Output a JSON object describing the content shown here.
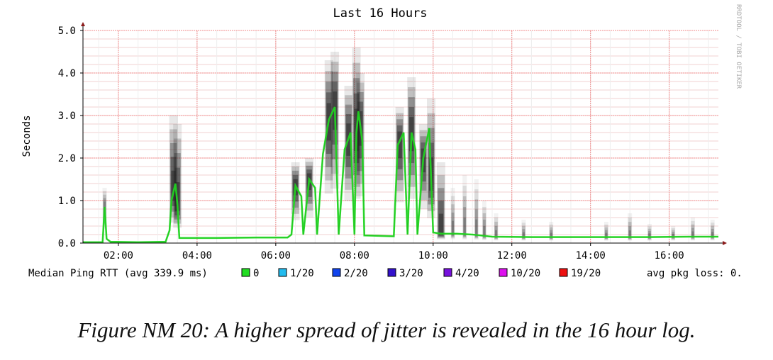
{
  "chart_data": {
    "type": "area",
    "title": "Last 16 Hours",
    "ylabel": "Seconds",
    "xlabel": "",
    "watermark": "RRDTOOL / TOBI OETIKER",
    "ylim": [
      0,
      5.0
    ],
    "y_ticks": [
      "0.0",
      "1.0",
      "2.0",
      "3.0",
      "4.0",
      "5.0"
    ],
    "x_ticks": [
      "02:00",
      "04:00",
      "06:00",
      "08:00",
      "10:00",
      "12:00",
      "14:00",
      "16:00"
    ],
    "x_range_hours": [
      1.1,
      17.25
    ],
    "grid": true,
    "median_series": {
      "name": "Median Ping RTT",
      "color": "#22dd22",
      "points": [
        [
          1.1,
          0.02
        ],
        [
          1.6,
          0.02
        ],
        [
          1.65,
          0.85
        ],
        [
          1.7,
          0.1
        ],
        [
          1.8,
          0.03
        ],
        [
          2.5,
          0.02
        ],
        [
          3.2,
          0.03
        ],
        [
          3.3,
          0.3
        ],
        [
          3.35,
          1.0
        ],
        [
          3.45,
          1.4
        ],
        [
          3.5,
          0.9
        ],
        [
          3.55,
          0.12
        ],
        [
          4.5,
          0.12
        ],
        [
          5.5,
          0.13
        ],
        [
          6.3,
          0.13
        ],
        [
          6.4,
          0.2
        ],
        [
          6.5,
          1.35
        ],
        [
          6.65,
          1.1
        ],
        [
          6.7,
          0.2
        ],
        [
          6.85,
          1.5
        ],
        [
          7.0,
          1.3
        ],
        [
          7.05,
          0.2
        ],
        [
          7.2,
          2.1
        ],
        [
          7.35,
          2.9
        ],
        [
          7.5,
          3.2
        ],
        [
          7.6,
          0.2
        ],
        [
          7.75,
          2.2
        ],
        [
          7.9,
          2.6
        ],
        [
          8.0,
          0.2
        ],
        [
          8.05,
          2.6
        ],
        [
          8.1,
          3.1
        ],
        [
          8.2,
          2.4
        ],
        [
          8.25,
          0.18
        ],
        [
          9.0,
          0.16
        ],
        [
          9.1,
          2.3
        ],
        [
          9.25,
          2.6
        ],
        [
          9.35,
          0.2
        ],
        [
          9.45,
          2.6
        ],
        [
          9.55,
          2.2
        ],
        [
          9.6,
          0.2
        ],
        [
          9.75,
          2.0
        ],
        [
          9.9,
          2.7
        ],
        [
          10.0,
          0.25
        ],
        [
          10.2,
          0.22
        ],
        [
          10.6,
          0.22
        ],
        [
          11.0,
          0.2
        ],
        [
          11.5,
          0.15
        ],
        [
          12.5,
          0.14
        ],
        [
          13.5,
          0.14
        ],
        [
          14.5,
          0.14
        ],
        [
          15.5,
          0.14
        ],
        [
          16.5,
          0.15
        ],
        [
          17.25,
          0.15
        ]
      ]
    },
    "spread_peaks": [
      [
        1.65,
        1.3
      ],
      [
        3.4,
        3.0
      ],
      [
        3.5,
        2.8
      ],
      [
        6.5,
        1.9
      ],
      [
        6.85,
        2.0
      ],
      [
        7.35,
        4.3
      ],
      [
        7.5,
        4.5
      ],
      [
        7.85,
        3.7
      ],
      [
        8.05,
        4.6
      ],
      [
        8.15,
        4.0
      ],
      [
        9.15,
        3.2
      ],
      [
        9.45,
        3.9
      ],
      [
        9.75,
        2.8
      ],
      [
        9.95,
        3.4
      ],
      [
        10.2,
        1.9
      ],
      [
        10.5,
        1.3
      ],
      [
        10.8,
        1.6
      ],
      [
        11.1,
        1.5
      ],
      [
        11.3,
        1.0
      ],
      [
        11.6,
        0.7
      ],
      [
        12.3,
        0.55
      ],
      [
        13.0,
        0.5
      ],
      [
        14.4,
        0.5
      ],
      [
        15.0,
        0.7
      ],
      [
        15.5,
        0.45
      ],
      [
        16.1,
        0.4
      ],
      [
        16.6,
        0.6
      ],
      [
        17.1,
        0.55
      ]
    ],
    "legend": {
      "label": "Median Ping RTT (avg 339.9 ms)",
      "items": [
        {
          "label": "0",
          "color": "#22dd22"
        },
        {
          "label": "1/20",
          "color": "#22bbee"
        },
        {
          "label": "2/20",
          "color": "#1144ee"
        },
        {
          "label": "3/20",
          "color": "#3311cc"
        },
        {
          "label": "4/20",
          "color": "#7711dd"
        },
        {
          "label": "10/20",
          "color": "#dd11ee"
        },
        {
          "label": "19/20",
          "color": "#ee1111"
        }
      ],
      "loss_label": "avg pkg loss: 0."
    }
  },
  "caption": "Figure NM 20: A higher spread of jitter is revealed in the 16 hour log."
}
